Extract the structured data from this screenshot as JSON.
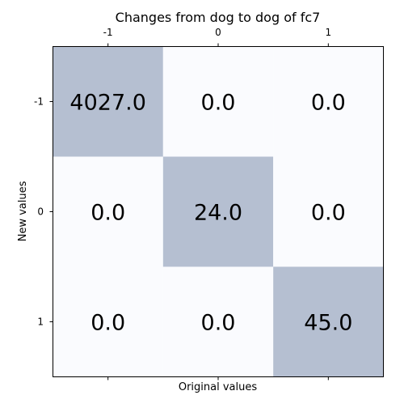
{
  "chart_data": {
    "type": "heatmap",
    "title": "Changes from dog to dog of fc7",
    "xlabel": "Original values",
    "ylabel": "New values",
    "x_categories": [
      "-1",
      "0",
      "1"
    ],
    "y_categories": [
      "-1",
      "0",
      "1"
    ],
    "x_tick_position": "top",
    "values": [
      [
        4027.0,
        0.0,
        0.0
      ],
      [
        0.0,
        24.0,
        0.0
      ],
      [
        0.0,
        0.0,
        45.0
      ]
    ],
    "cell_labels": [
      [
        "4027.0",
        "0.0",
        "0.0"
      ],
      [
        "0.0",
        "24.0",
        "0.0"
      ],
      [
        "0.0",
        "0.0",
        "45.0"
      ]
    ],
    "grid": false,
    "colors": {
      "high": "#b5bfd1",
      "low": "#fafbfe",
      "axis": "#000000"
    }
  }
}
